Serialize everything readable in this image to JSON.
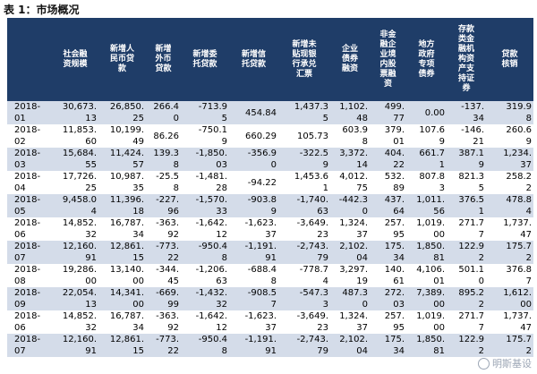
{
  "caption": "表 1：市场概况",
  "headers": [
    "",
    "社会融\n资规模",
    "新增人\n民币贷\n款",
    "新增\n外币\n贷款",
    "新增委\n托贷款",
    "新增信\n托贷款",
    "新增未\n贴现银\n行承兑\n汇票",
    "企业\n债券\n融资",
    "非金\n融企\n业境\n内股\n票融\n资",
    "地方\n政府\n专项\n债券",
    "存款\n类金\n融机\n构资\n产支\n持证\n券",
    "贷款\n核销"
  ],
  "rows": [
    [
      "2018-\n01",
      "30,673.\n13",
      "26,850.\n25",
      "266.4\n0",
      "-713.9\n5",
      "454.84",
      "1,437.3\n5",
      "1,102.\n48",
      "499.\n77",
      "0.00",
      "-137.\n34",
      "319.9\n8"
    ],
    [
      "2018-\n02",
      "11,853.\n60",
      "10,199.\n49",
      "86.26",
      "-750.1\n9",
      "660.29",
      "105.73",
      "603.9\n8",
      "379.\n01",
      "107.6\n9",
      "-146.\n21",
      "260.6\n9"
    ],
    [
      "2018-\n03",
      "15,684.\n55",
      "11,424.\n57",
      "139.3\n8",
      "-1,850.\n03",
      "-356.9\n0",
      "-322.5\n9",
      "3,372.\n14",
      "404.\n22",
      "661.7\n1",
      "387.1\n9",
      "1,234.\n37"
    ],
    [
      "2018-\n04",
      "17,726.\n25",
      "10,987.\n35",
      "-25.5\n8",
      "-1,481.\n28",
      "-94.22",
      "1,453.6\n1",
      "4,012.\n75",
      "532.\n89",
      "807.8\n3",
      "821.3\n5",
      "258.2\n2"
    ],
    [
      "2018-\n05",
      "9,458.0\n4",
      "11,396.\n18",
      "-227.\n96",
      "-1,570.\n33",
      "-903.8\n9",
      "-1,740.\n63",
      "-442.3\n0",
      "437.\n64",
      "1,011.\n56",
      "376.5\n1",
      "478.8\n4"
    ],
    [
      "2018-\n06",
      "14,852.\n32",
      "16,787.\n34",
      "-363.\n92",
      "-1,642.\n12",
      "-1,623.\n37",
      "-3,649.\n23",
      "1,324.\n37",
      "257.\n95",
      "1,019.\n00",
      "271.7\n7",
      "1,737.\n47"
    ],
    [
      "2018-\n07",
      "12,160.\n91",
      "12,861.\n15",
      "-773.\n22",
      "-950.4\n8",
      "-1,191.\n91",
      "-2,743.\n79",
      "2,102.\n04",
      "175.\n34",
      "1,850.\n81",
      "122.9\n2",
      "175.7\n2"
    ],
    [
      "2018-\n08",
      "19,286.\n00",
      "13,140.\n00",
      "-344.\n45",
      "-1,206.\n63",
      "-688.4\n8",
      "-778.7\n4",
      "3,297.\n19",
      "140.\n61",
      "4,106.\n01",
      "501.1\n0",
      "376.8\n7"
    ],
    [
      "2018-\n09",
      "22,054.\n13",
      "14,341.\n00",
      "-669.\n99",
      "-1,432.\n32",
      "-908.5\n7",
      "-547.3\n3",
      "487.3\n0",
      "272.\n03",
      "7,389.\n00",
      "895.2\n2",
      "1,612.\n00"
    ],
    [
      "2018-\n06",
      "14,852.\n32",
      "16,787.\n34",
      "-363.\n92",
      "-1,642.\n12",
      "-1,623.\n37",
      "-3,649.\n23",
      "1,324.\n37",
      "257.\n95",
      "1,019.\n00",
      "271.7\n7",
      "1,737.\n47"
    ],
    [
      "2018-\n07",
      "12,160.\n91",
      "12,861.\n15",
      "-773.\n22",
      "-950.4\n8",
      "-1,191.\n91",
      "-2,743.\n79",
      "2,102.\n04",
      "175.\n34",
      "1,850.\n81",
      "122.9\n2",
      "175.7\n2"
    ]
  ],
  "watermark": "明斯基设"
}
